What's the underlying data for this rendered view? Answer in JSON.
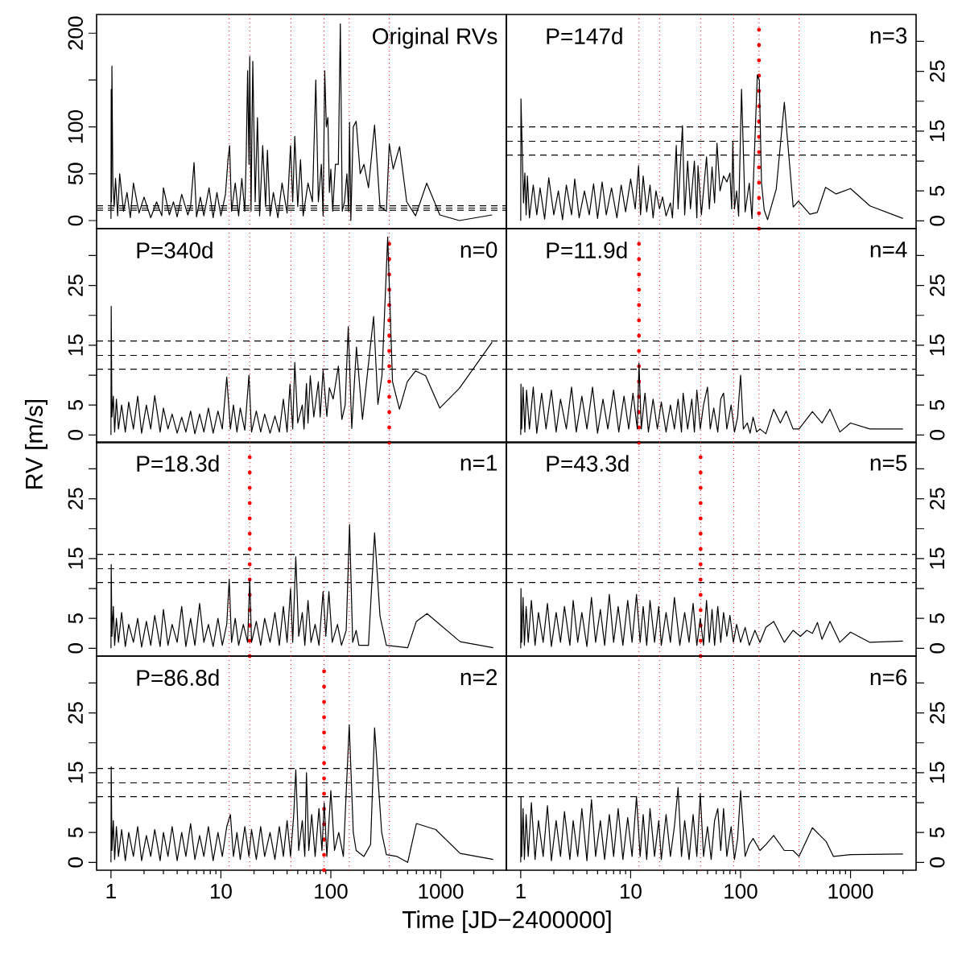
{
  "chart_data": [
    {
      "type": "line",
      "log": "x",
      "annotations": [
        "Original RVs"
      ],
      "tick_labels": "y",
      "color": "#000000",
      "xlim": [
        0.74,
        3950
      ],
      "ylim": [
        -8.6,
        220
      ],
      "yticks": [
        0,
        50,
        100,
        {
          "value": 150,
          "label": null
        },
        200
      ],
      "x": [
        1.0,
        1.005,
        1.01,
        1.02,
        1.04,
        1.07,
        1.1,
        1.15,
        1.2,
        1.3,
        1.4,
        1.5,
        1.6,
        1.8,
        2.0,
        2.3,
        2.6,
        2.9,
        3.0,
        3.4,
        3.7,
        4.0,
        4.4,
        5.0,
        5.3,
        5.7,
        6.0,
        6.5,
        7.0,
        7.8,
        8.5,
        9.2,
        10,
        11,
        11.6,
        12,
        12.5,
        13.5,
        14.5,
        15.5,
        16.5,
        17,
        17.5,
        18,
        18.3,
        18.8,
        19.5,
        20.5,
        21.5,
        22.5,
        24,
        25.5,
        26.5,
        28,
        30,
        33,
        36,
        40,
        43,
        45,
        47,
        50,
        53,
        56,
        62,
        68,
        73,
        77,
        82,
        85,
        88,
        91,
        94,
        97,
        100,
        104,
        110,
        117,
        122,
        127,
        133,
        140,
        145,
        148,
        152,
        160,
        170,
        185,
        200,
        220,
        250,
        280,
        320,
        340,
        369,
        422,
        490,
        590,
        745,
        980,
        1475,
        2930
      ],
      "values": [
        2,
        140,
        20,
        165,
        40,
        15,
        45,
        5,
        50,
        10,
        30,
        3,
        40,
        8,
        25,
        3,
        20,
        5,
        35,
        6,
        20,
        4,
        28,
        6,
        15,
        62,
        4,
        25,
        5,
        35,
        3,
        30,
        5,
        28,
        65,
        80,
        10,
        40,
        5,
        45,
        10,
        70,
        160,
        60,
        175,
        10,
        170,
        20,
        110,
        5,
        80,
        15,
        75,
        5,
        30,
        3,
        40,
        8,
        80,
        20,
        90,
        15,
        65,
        5,
        40,
        20,
        150,
        20,
        60,
        5,
        160,
        100,
        110,
        30,
        55,
        10,
        60,
        60,
        210,
        10,
        20,
        50,
        10,
        105,
        0,
        100,
        106,
        50,
        60,
        35,
        102,
        15,
        10,
        82,
        55,
        79,
        20,
        5,
        40,
        6,
        0,
        6
      ],
      "ref_lines": [
        {
          "axis": "y",
          "value": 15.7,
          "color": "#000000",
          "line_style": "dashed"
        },
        {
          "axis": "y",
          "value": 13.3,
          "color": "#000000",
          "line_style": "dashed"
        },
        {
          "axis": "y",
          "value": 11.0,
          "color": "#000000",
          "line_style": "dashed"
        },
        {
          "axis": "x",
          "value": 11.9,
          "color": "#ff0000",
          "line_style": "dotted"
        },
        {
          "axis": "x",
          "value": 18.3,
          "color": "#ff0000",
          "line_style": "dotted"
        },
        {
          "axis": "x",
          "value": 43.3,
          "color": "#ff0000",
          "line_style": "dotted"
        },
        {
          "axis": "x",
          "value": 86.8,
          "color": "#ff0000",
          "line_style": "dotted"
        },
        {
          "axis": "x",
          "value": 147,
          "color": "#ff0000",
          "line_style": "dotted"
        },
        {
          "axis": "x",
          "value": 340,
          "color": "#ff0000",
          "line_style": "dotted"
        }
      ]
    },
    {
      "type": "line",
      "log": "x",
      "annotations": [
        "P=147d",
        "n=3"
      ],
      "tick_labels": "y",
      "color": "#000000",
      "xlim": [
        0.74,
        3950
      ],
      "ylim": [
        -1.3,
        34.5
      ],
      "yticks": [
        0,
        5,
        {
          "value": 10,
          "label": null
        },
        15,
        {
          "value": 20,
          "label": null
        },
        25,
        {
          "value": 30,
          "label": null
        }
      ],
      "x": [
        1.0,
        1.005,
        1.03,
        1.06,
        1.09,
        1.12,
        1.15,
        1.2,
        1.3,
        1.4,
        1.5,
        1.65,
        1.8,
        2.0,
        2.2,
        2.4,
        2.6,
        2.9,
        3.1,
        3.4,
        3.8,
        4.2,
        4.6,
        5.0,
        5.5,
        6.0,
        6.7,
        7.5,
        8.2,
        9.0,
        10,
        11,
        11.8,
        12.3,
        13,
        14,
        15,
        16,
        17,
        18.3,
        19.5,
        21,
        23,
        24,
        26,
        27,
        29.6,
        31,
        33,
        35,
        38,
        40,
        41,
        44,
        49,
        52,
        55,
        58,
        61,
        65,
        70,
        75,
        80,
        83,
        85,
        88,
        92,
        96,
        102,
        110,
        120,
        127,
        142,
        148,
        155,
        164,
        176,
        211,
        250,
        301,
        336,
        427,
        498,
        593,
        740,
        1000,
        1500,
        3000
      ],
      "values": [
        0,
        20.4,
        12.5,
        3,
        8,
        1,
        7.5,
        0.5,
        6,
        1,
        5.5,
        0.3,
        7.2,
        1,
        5,
        0.2,
        6,
        1,
        7,
        0.5,
        5,
        1,
        6.2,
        0.4,
        6.5,
        1,
        5.5,
        0.5,
        6,
        1.5,
        7,
        2,
        9.2,
        1,
        7.5,
        1.5,
        6,
        0.5,
        5,
        2,
        4,
        0.8,
        3,
        0.5,
        12.6,
        2,
        15.9,
        1,
        10,
        2,
        10,
        0.5,
        9.2,
        1,
        10.7,
        2,
        9,
        3,
        13,
        5,
        7.5,
        6.5,
        8,
        2,
        13.3,
        2,
        5,
        0.8,
        22,
        1.5,
        6.3,
        0.4,
        24.4,
        23.5,
        6.3,
        1.8,
        0.2,
        5.3,
        19.8,
        2.3,
        3.3,
        1.1,
        1.4,
        5.6,
        4.5,
        5.4,
        2.5,
        0.4
      ],
      "ref_lines": [
        {
          "axis": "y",
          "value": 15.7,
          "color": "#000000",
          "line_style": "dashed"
        },
        {
          "axis": "y",
          "value": 13.3,
          "color": "#000000",
          "line_style": "dashed"
        },
        {
          "axis": "y",
          "value": 11.0,
          "color": "#000000",
          "line_style": "dashed"
        },
        {
          "axis": "x",
          "value": 11.9,
          "color": "#ff0000",
          "line_style": "dotted"
        },
        {
          "axis": "x",
          "value": 18.3,
          "color": "#ff0000",
          "line_style": "dotted"
        },
        {
          "axis": "x",
          "value": 43.3,
          "color": "#ff0000",
          "line_style": "dotted"
        },
        {
          "axis": "x",
          "value": 86.8,
          "color": "#ff0000",
          "line_style": "dotted"
        },
        {
          "axis": "x",
          "value": 147,
          "color": "#ff0000",
          "line_style": "dotted"
        },
        {
          "axis": "x",
          "value": 340,
          "color": "#ff0000",
          "line_style": "dotted"
        },
        {
          "axis": "x",
          "value": 147,
          "color": "#ff0000",
          "line_style": "dotted"
        }
      ]
    },
    {
      "type": "line",
      "log": "x",
      "annotations": [
        "P=340d",
        "n=0"
      ],
      "tick_labels": "y",
      "color": "#000000",
      "xlim": [
        0.74,
        3950
      ],
      "ylim": [
        -1.3,
        34.5
      ],
      "yticks": [
        0,
        5,
        {
          "value": 10,
          "label": null
        },
        15,
        {
          "value": 20,
          "label": null
        },
        25,
        {
          "value": 30,
          "label": null
        }
      ],
      "x": [
        1.0,
        1.005,
        1.02,
        1.05,
        1.08,
        1.12,
        1.17,
        1.25,
        1.35,
        1.45,
        1.6,
        1.75,
        1.9,
        2.1,
        2.3,
        2.5,
        2.8,
        3.0,
        3.3,
        3.6,
        4.0,
        4.4,
        4.8,
        5.3,
        5.8,
        6.4,
        7.0,
        7.7,
        8.5,
        9.4,
        10.3,
        11.3,
        12.2,
        13,
        14,
        15,
        16.5,
        18,
        19,
        21,
        23,
        25,
        28,
        31,
        34,
        37,
        40,
        42.5,
        45,
        47,
        50,
        55,
        57,
        60,
        62,
        65,
        70,
        77,
        80,
        85,
        92,
        97,
        105,
        117,
        126,
        135,
        144,
        155,
        171,
        194,
        245,
        268,
        292,
        329,
        364,
        421,
        496,
        589,
        728,
        980,
        1476,
        2930
      ],
      "values": [
        0,
        21.5,
        3,
        6.5,
        0.5,
        6,
        1,
        5,
        0.5,
        5.5,
        1,
        6.5,
        0.3,
        5,
        1,
        6.6,
        0.5,
        4.5,
        1,
        3.5,
        0.3,
        3,
        0.5,
        4,
        0.2,
        3.5,
        0.5,
        4.5,
        0.3,
        4,
        1,
        9.7,
        1,
        5,
        0.5,
        4.5,
        0.8,
        10,
        0.5,
        4,
        0.5,
        3.5,
        0.3,
        3.2,
        0.5,
        6,
        0.5,
        8.5,
        1,
        12.1,
        2,
        5,
        1,
        8.6,
        2,
        9.9,
        3,
        8.9,
        3,
        10.8,
        3.1,
        7.9,
        6,
        11.5,
        2.6,
        5,
        18.1,
        1.1,
        14.7,
        2.6,
        19.8,
        5.1,
        10,
        33.1,
        8.9,
        4.3,
        8.9,
        10.7,
        9.9,
        4.5,
        7.8,
        15.5
      ],
      "ref_lines": [
        {
          "axis": "y",
          "value": 15.7,
          "color": "#000000",
          "line_style": "dashed"
        },
        {
          "axis": "y",
          "value": 13.3,
          "color": "#000000",
          "line_style": "dashed"
        },
        {
          "axis": "y",
          "value": 11.0,
          "color": "#000000",
          "line_style": "dashed"
        },
        {
          "axis": "x",
          "value": 11.9,
          "color": "#ff0000",
          "line_style": "dotted"
        },
        {
          "axis": "x",
          "value": 18.3,
          "color": "#ff0000",
          "line_style": "dotted"
        },
        {
          "axis": "x",
          "value": 43.3,
          "color": "#ff0000",
          "line_style": "dotted"
        },
        {
          "axis": "x",
          "value": 86.8,
          "color": "#ff0000",
          "line_style": "dotted"
        },
        {
          "axis": "x",
          "value": 147,
          "color": "#ff0000",
          "line_style": "dotted"
        },
        {
          "axis": "x",
          "value": 340,
          "color": "#ff0000",
          "line_style": "dotted"
        },
        {
          "axis": "x",
          "value": 340,
          "color": "#ff0000",
          "line_style": "dotted"
        }
      ]
    },
    {
      "type": "line",
      "log": "x",
      "annotations": [
        "P=11.9d",
        "n=4"
      ],
      "tick_labels": "y",
      "color": "#000000",
      "xlim": [
        0.74,
        3950
      ],
      "ylim": [
        -1.3,
        34.5
      ],
      "yticks": [
        0,
        5,
        {
          "value": 10,
          "label": null
        },
        15,
        {
          "value": 20,
          "label": null
        },
        25,
        {
          "value": 30,
          "label": null
        }
      ],
      "x": [
        1.0,
        1.005,
        1.02,
        1.05,
        1.09,
        1.13,
        1.2,
        1.3,
        1.4,
        1.55,
        1.7,
        1.9,
        2.1,
        2.3,
        2.6,
        2.9,
        3.2,
        3.6,
        4.0,
        4.5,
        5.0,
        5.6,
        6.2,
        7.0,
        7.8,
        8.7,
        9.6,
        10.5,
        11.5,
        11.9,
        12.5,
        13.5,
        14.5,
        16,
        17.5,
        19,
        21,
        23,
        25,
        27,
        29,
        30,
        33,
        36,
        38,
        40,
        43,
        46,
        50,
        53,
        57,
        62,
        66,
        70,
        75,
        82,
        88,
        94,
        100,
        106,
        115,
        122,
        130,
        140,
        150,
        170,
        200,
        230,
        260,
        300,
        340,
        450,
        550,
        650,
        800,
        1000,
        1500,
        3000
      ],
      "values": [
        0,
        8.5,
        1,
        8,
        0.5,
        7.5,
        1,
        8,
        0.3,
        7,
        1,
        7.5,
        0.5,
        6,
        1,
        8,
        0.5,
        6.5,
        1,
        8,
        0.3,
        6,
        1,
        7.5,
        0.5,
        6.5,
        1,
        7,
        1,
        12,
        1,
        7,
        0.5,
        6,
        1,
        5.5,
        0.5,
        5,
        1,
        6,
        0.5,
        7,
        1,
        6,
        0.5,
        7.5,
        1,
        5,
        8,
        1,
        4.5,
        0.5,
        6,
        7,
        1,
        5,
        0.5,
        3,
        10,
        1,
        2,
        0.3,
        3,
        0.5,
        1,
        0.2,
        4.3,
        2,
        4,
        1,
        1,
        3.9,
        2,
        4.3,
        0.5,
        2,
        1,
        1
      ],
      "ref_lines": [
        {
          "axis": "y",
          "value": 15.7,
          "color": "#000000",
          "line_style": "dashed"
        },
        {
          "axis": "y",
          "value": 13.3,
          "color": "#000000",
          "line_style": "dashed"
        },
        {
          "axis": "y",
          "value": 11.0,
          "color": "#000000",
          "line_style": "dashed"
        },
        {
          "axis": "x",
          "value": 11.9,
          "color": "#ff0000",
          "line_style": "dotted"
        },
        {
          "axis": "x",
          "value": 18.3,
          "color": "#ff0000",
          "line_style": "dotted"
        },
        {
          "axis": "x",
          "value": 43.3,
          "color": "#ff0000",
          "line_style": "dotted"
        },
        {
          "axis": "x",
          "value": 86.8,
          "color": "#ff0000",
          "line_style": "dotted"
        },
        {
          "axis": "x",
          "value": 147,
          "color": "#ff0000",
          "line_style": "dotted"
        },
        {
          "axis": "x",
          "value": 340,
          "color": "#ff0000",
          "line_style": "dotted"
        },
        {
          "axis": "x",
          "value": 11.9,
          "color": "#ff0000",
          "line_style": "dotted"
        }
      ]
    },
    {
      "type": "line",
      "log": "x",
      "ylabel": "RV [m/s]",
      "annotations": [
        "P=18.3d",
        "n=1"
      ],
      "tick_labels": "y",
      "color": "#000000",
      "xlim": [
        0.74,
        3950
      ],
      "ylim": [
        -1.3,
        34.5
      ],
      "yticks": [
        0,
        5,
        {
          "value": 10,
          "label": null
        },
        15,
        {
          "value": 20,
          "label": null
        },
        25,
        {
          "value": 30,
          "label": null
        }
      ],
      "x": [
        1.0,
        1.005,
        1.02,
        1.05,
        1.08,
        1.12,
        1.17,
        1.25,
        1.35,
        1.45,
        1.6,
        1.75,
        1.9,
        2.1,
        2.3,
        2.5,
        2.8,
        3.0,
        3.3,
        3.6,
        4.0,
        4.4,
        4.8,
        5.3,
        5.8,
        6.4,
        7.0,
        7.7,
        8.5,
        9.4,
        10.3,
        11.3,
        11.9,
        12.5,
        13.5,
        14.5,
        16,
        17.5,
        18.3,
        19,
        21,
        23,
        25,
        28,
        31,
        34,
        37,
        40,
        43,
        45,
        48,
        51,
        55,
        58,
        62,
        66,
        72,
        78,
        85,
        90,
        96,
        103,
        115,
        125,
        138,
        148,
        158,
        170,
        180,
        220,
        250,
        280,
        320,
        400,
        500,
        600,
        750,
        1500,
        3000
      ],
      "values": [
        0,
        14,
        2,
        7,
        0.5,
        5,
        1,
        6,
        0.3,
        4,
        1,
        5,
        0.2,
        4.5,
        0.5,
        5.5,
        0.3,
        6.5,
        0.5,
        4,
        1,
        7,
        0.3,
        5,
        0.5,
        7.5,
        1,
        4,
        0.3,
        5,
        0.5,
        4,
        11.5,
        1,
        5,
        0.5,
        4,
        1,
        11.5,
        1,
        4.5,
        0.5,
        5,
        1,
        6,
        0.5,
        7,
        1,
        10,
        1,
        15.3,
        2,
        6,
        0.5,
        8,
        1,
        4,
        0.5,
        9.5,
        2,
        9.5,
        1,
        4,
        0.5,
        3,
        20.7,
        1,
        3,
        0.5,
        0.5,
        19.3,
        5.4,
        0.5,
        0.3,
        0.1,
        4.5,
        5.8,
        1.1,
        0.1
      ],
      "ref_lines": [
        {
          "axis": "y",
          "value": 15.7,
          "color": "#000000",
          "line_style": "dashed"
        },
        {
          "axis": "y",
          "value": 13.3,
          "color": "#000000",
          "line_style": "dashed"
        },
        {
          "axis": "y",
          "value": 11.0,
          "color": "#000000",
          "line_style": "dashed"
        },
        {
          "axis": "x",
          "value": 11.9,
          "color": "#ff0000",
          "line_style": "dotted"
        },
        {
          "axis": "x",
          "value": 18.3,
          "color": "#ff0000",
          "line_style": "dotted"
        },
        {
          "axis": "x",
          "value": 43.3,
          "color": "#ff0000",
          "line_style": "dotted"
        },
        {
          "axis": "x",
          "value": 86.8,
          "color": "#ff0000",
          "line_style": "dotted"
        },
        {
          "axis": "x",
          "value": 147,
          "color": "#ff0000",
          "line_style": "dotted"
        },
        {
          "axis": "x",
          "value": 340,
          "color": "#ff0000",
          "line_style": "dotted"
        },
        {
          "axis": "x",
          "value": 18.3,
          "color": "#ff0000",
          "line_style": "dotted"
        }
      ]
    },
    {
      "type": "line",
      "log": "x",
      "annotations": [
        "P=43.3d",
        "n=5"
      ],
      "tick_labels": "y",
      "color": "#000000",
      "xlim": [
        0.74,
        3950
      ],
      "ylim": [
        -1.3,
        34.5
      ],
      "yticks": [
        0,
        5,
        {
          "value": 10,
          "label": null
        },
        15,
        {
          "value": 20,
          "label": null
        },
        25,
        {
          "value": 30,
          "label": null
        }
      ],
      "x": [
        1.0,
        1.005,
        1.02,
        1.05,
        1.08,
        1.12,
        1.17,
        1.25,
        1.35,
        1.45,
        1.6,
        1.75,
        1.9,
        2.1,
        2.3,
        2.5,
        2.8,
        3.0,
        3.3,
        3.6,
        4.0,
        4.4,
        4.8,
        5.3,
        5.8,
        6.4,
        7.0,
        7.7,
        8.5,
        9.4,
        10.3,
        11.3,
        12.2,
        13,
        14,
        15,
        16.5,
        18,
        19,
        21,
        23,
        25,
        28,
        31,
        34,
        37,
        40,
        43,
        46,
        49,
        52,
        55,
        58,
        62,
        66,
        70,
        75,
        80,
        86,
        92,
        100,
        110,
        120,
        135,
        150,
        170,
        200,
        250,
        300,
        350,
        400,
        450,
        500,
        550,
        650,
        800,
        1000,
        1500,
        3000
      ],
      "values": [
        0,
        10,
        1,
        8.5,
        0.5,
        7,
        1,
        8,
        0.5,
        6,
        1,
        7.5,
        0.3,
        6,
        1,
        7,
        0.5,
        8,
        1,
        6,
        0.3,
        8.5,
        1,
        6.5,
        0.5,
        9,
        1,
        7,
        0.5,
        8,
        1,
        9,
        1,
        7,
        0.5,
        8,
        1,
        7,
        0.5,
        6,
        1,
        8.5,
        0.5,
        6,
        1,
        7.5,
        0.5,
        5,
        0.5,
        8,
        1,
        6.5,
        0.5,
        7,
        1,
        6,
        2,
        5.5,
        1,
        4,
        1,
        3.5,
        0.5,
        3,
        1,
        3.5,
        4.5,
        1,
        3,
        2,
        3,
        2.5,
        4.3,
        1.5,
        4.5,
        1,
        2.7,
        1,
        1.2
      ],
      "ref_lines": [
        {
          "axis": "y",
          "value": 15.7,
          "color": "#000000",
          "line_style": "dashed"
        },
        {
          "axis": "y",
          "value": 13.3,
          "color": "#000000",
          "line_style": "dashed"
        },
        {
          "axis": "y",
          "value": 11.0,
          "color": "#000000",
          "line_style": "dashed"
        },
        {
          "axis": "x",
          "value": 11.9,
          "color": "#ff0000",
          "line_style": "dotted"
        },
        {
          "axis": "x",
          "value": 18.3,
          "color": "#ff0000",
          "line_style": "dotted"
        },
        {
          "axis": "x",
          "value": 43.3,
          "color": "#ff0000",
          "line_style": "dotted"
        },
        {
          "axis": "x",
          "value": 86.8,
          "color": "#ff0000",
          "line_style": "dotted"
        },
        {
          "axis": "x",
          "value": 147,
          "color": "#ff0000",
          "line_style": "dotted"
        },
        {
          "axis": "x",
          "value": 340,
          "color": "#ff0000",
          "line_style": "dotted"
        },
        {
          "axis": "x",
          "value": 43.3,
          "color": "#ff0000",
          "line_style": "dotted"
        }
      ]
    },
    {
      "type": "line",
      "log": "x",
      "xlabel": "Time [JD−2400000]",
      "annotations": [
        "P=86.8d",
        "n=2"
      ],
      "color": "#000000",
      "xlim": [
        0.74,
        3950
      ],
      "ylim": [
        -1.3,
        34.5
      ],
      "xticks": [
        1,
        {
          "value": 2,
          "label": null
        },
        {
          "value": 3,
          "label": null
        },
        {
          "value": 4,
          "label": null
        },
        {
          "value": 5,
          "label": null
        },
        {
          "value": 6,
          "label": null
        },
        {
          "value": 7,
          "label": null
        },
        {
          "value": 8,
          "label": null
        },
        {
          "value": 9,
          "label": null
        },
        10,
        {
          "value": 20,
          "label": null
        },
        {
          "value": 30,
          "label": null
        },
        {
          "value": 40,
          "label": null
        },
        {
          "value": 50,
          "label": null
        },
        {
          "value": 60,
          "label": null
        },
        {
          "value": 70,
          "label": null
        },
        {
          "value": 80,
          "label": null
        },
        {
          "value": 90,
          "label": null
        },
        100,
        {
          "value": 200,
          "label": null
        },
        {
          "value": 300,
          "label": null
        },
        {
          "value": 400,
          "label": null
        },
        {
          "value": 500,
          "label": null
        },
        {
          "value": 600,
          "label": null
        },
        {
          "value": 700,
          "label": null
        },
        {
          "value": 800,
          "label": null
        },
        {
          "value": 900,
          "label": null
        },
        1000,
        {
          "value": 2000,
          "label": null
        },
        {
          "value": 3000,
          "label": null
        }
      ],
      "yticks": [
        0,
        5,
        {
          "value": 10,
          "label": null
        },
        15,
        {
          "value": 20,
          "label": null
        },
        25,
        {
          "value": 30,
          "label": null
        }
      ],
      "x": [
        1.0,
        1.005,
        1.02,
        1.05,
        1.08,
        1.12,
        1.17,
        1.25,
        1.35,
        1.45,
        1.6,
        1.75,
        1.9,
        2.1,
        2.3,
        2.5,
        2.8,
        3.0,
        3.3,
        3.6,
        4.0,
        4.4,
        4.8,
        5.3,
        5.8,
        6.4,
        7.0,
        7.7,
        8.5,
        9.4,
        10.3,
        11.3,
        12.2,
        13,
        14,
        15,
        16.5,
        18,
        19,
        21,
        23,
        25,
        28,
        31,
        34,
        37,
        40,
        43,
        46,
        48,
        51,
        55,
        58,
        60,
        63,
        67,
        72,
        78,
        83,
        87,
        92,
        100,
        108,
        118,
        130,
        147,
        160,
        170,
        200,
        230,
        250,
        290,
        320,
        400,
        500,
        600,
        900,
        1500,
        3000
      ],
      "values": [
        0,
        16,
        2,
        7,
        0.5,
        6,
        1,
        5.5,
        0.3,
        5,
        1,
        6,
        0.3,
        4.5,
        1,
        5.5,
        0.3,
        5,
        1,
        6,
        0.3,
        5,
        1,
        6.5,
        0.5,
        4.5,
        1,
        6,
        0.3,
        5,
        1,
        6,
        8,
        1,
        5,
        0.5,
        6,
        1,
        5.5,
        0.5,
        6,
        1,
        5,
        0.5,
        6,
        1,
        7,
        1,
        8,
        15.5,
        2,
        7,
        1,
        15,
        2,
        8,
        1,
        9,
        2,
        10,
        1,
        12,
        2,
        5,
        1,
        23,
        5,
        2,
        1,
        3,
        22.5,
        5,
        1.3,
        1,
        0,
        6.5,
        5.5,
        1.5,
        0.5
      ],
      "ref_lines": [
        {
          "axis": "y",
          "value": 15.7,
          "color": "#000000",
          "line_style": "dashed"
        },
        {
          "axis": "y",
          "value": 13.3,
          "color": "#000000",
          "line_style": "dashed"
        },
        {
          "axis": "y",
          "value": 11.0,
          "color": "#000000",
          "line_style": "dashed"
        },
        {
          "axis": "x",
          "value": 11.9,
          "color": "#ff0000",
          "line_style": "dotted"
        },
        {
          "axis": "x",
          "value": 18.3,
          "color": "#ff0000",
          "line_style": "dotted"
        },
        {
          "axis": "x",
          "value": 43.3,
          "color": "#ff0000",
          "line_style": "dotted"
        },
        {
          "axis": "x",
          "value": 86.8,
          "color": "#ff0000",
          "line_style": "dotted"
        },
        {
          "axis": "x",
          "value": 147,
          "color": "#ff0000",
          "line_style": "dotted"
        },
        {
          "axis": "x",
          "value": 340,
          "color": "#ff0000",
          "line_style": "dotted"
        },
        {
          "axis": "x",
          "value": 86.8,
          "color": "#ff0000",
          "line_style": "dotted"
        }
      ]
    },
    {
      "type": "line",
      "log": "x",
      "annotations": [
        "n=6"
      ],
      "color": "#000000",
      "xlim": [
        0.74,
        3950
      ],
      "ylim": [
        -1.3,
        34.5
      ],
      "xticks": [
        1,
        {
          "value": 2,
          "label": null
        },
        {
          "value": 3,
          "label": null
        },
        {
          "value": 4,
          "label": null
        },
        {
          "value": 5,
          "label": null
        },
        {
          "value": 6,
          "label": null
        },
        {
          "value": 7,
          "label": null
        },
        {
          "value": 8,
          "label": null
        },
        {
          "value": 9,
          "label": null
        },
        10,
        {
          "value": 20,
          "label": null
        },
        {
          "value": 30,
          "label": null
        },
        {
          "value": 40,
          "label": null
        },
        {
          "value": 50,
          "label": null
        },
        {
          "value": 60,
          "label": null
        },
        {
          "value": 70,
          "label": null
        },
        {
          "value": 80,
          "label": null
        },
        {
          "value": 90,
          "label": null
        },
        100,
        {
          "value": 200,
          "label": null
        },
        {
          "value": 300,
          "label": null
        },
        {
          "value": 400,
          "label": null
        },
        {
          "value": 500,
          "label": null
        },
        {
          "value": 600,
          "label": null
        },
        {
          "value": 700,
          "label": null
        },
        {
          "value": 800,
          "label": null
        },
        {
          "value": 900,
          "label": null
        },
        1000,
        {
          "value": 2000,
          "label": null
        },
        {
          "value": 3000,
          "label": null
        }
      ],
      "yticks": [
        0,
        5,
        {
          "value": 10,
          "label": null
        },
        15,
        {
          "value": 20,
          "label": null
        },
        25,
        {
          "value": 30,
          "label": null
        }
      ],
      "x": [
        1.0,
        1.005,
        1.02,
        1.05,
        1.08,
        1.12,
        1.17,
        1.25,
        1.35,
        1.45,
        1.6,
        1.75,
        1.9,
        2.1,
        2.3,
        2.5,
        2.8,
        3.0,
        3.3,
        3.6,
        4.0,
        4.4,
        4.8,
        5.3,
        5.8,
        6.4,
        7.0,
        7.7,
        8.5,
        9.4,
        10.3,
        11.3,
        12.2,
        13,
        14,
        15,
        16.5,
        18,
        19,
        21,
        23,
        25,
        27,
        29,
        31,
        34,
        37,
        40,
        43,
        46,
        50,
        54,
        58,
        62,
        66,
        70,
        75,
        82,
        88,
        94,
        100,
        110,
        120,
        130,
        150,
        170,
        200,
        250,
        300,
        340,
        450,
        600,
        700,
        1000,
        3000
      ],
      "values": [
        0,
        11,
        1,
        9,
        0.5,
        8,
        1,
        10,
        0.5,
        7,
        1,
        9.5,
        0.3,
        7,
        1,
        8.5,
        0.5,
        7,
        1,
        9,
        0.3,
        10.5,
        1,
        7,
        0.5,
        8,
        1,
        9,
        0.5,
        7.5,
        1,
        11,
        1,
        8,
        0.5,
        9,
        1,
        7,
        0.5,
        8,
        1,
        6,
        12.5,
        1,
        7,
        0.5,
        8,
        1,
        11.5,
        1,
        6,
        0.5,
        7,
        9,
        2,
        9,
        1,
        6,
        0.5,
        4,
        12,
        1,
        3,
        4,
        2,
        3,
        4.5,
        2,
        2,
        1,
        5.8,
        3.5,
        1,
        1.3,
        1.4
      ],
      "ref_lines": [
        {
          "axis": "y",
          "value": 15.7,
          "color": "#000000",
          "line_style": "dashed"
        },
        {
          "axis": "y",
          "value": 13.3,
          "color": "#000000",
          "line_style": "dashed"
        },
        {
          "axis": "y",
          "value": 11.0,
          "color": "#000000",
          "line_style": "dashed"
        },
        {
          "axis": "x",
          "value": 11.9,
          "color": "#ff0000",
          "line_style": "dotted"
        },
        {
          "axis": "x",
          "value": 18.3,
          "color": "#ff0000",
          "line_style": "dotted"
        },
        {
          "axis": "x",
          "value": 43.3,
          "color": "#ff0000",
          "line_style": "dotted"
        },
        {
          "axis": "x",
          "value": 86.8,
          "color": "#ff0000",
          "line_style": "dotted"
        },
        {
          "axis": "x",
          "value": 147,
          "color": "#ff0000",
          "line_style": "dotted"
        },
        {
          "axis": "x",
          "value": 340,
          "color": "#ff0000",
          "line_style": "dotted"
        }
      ]
    }
  ]
}
